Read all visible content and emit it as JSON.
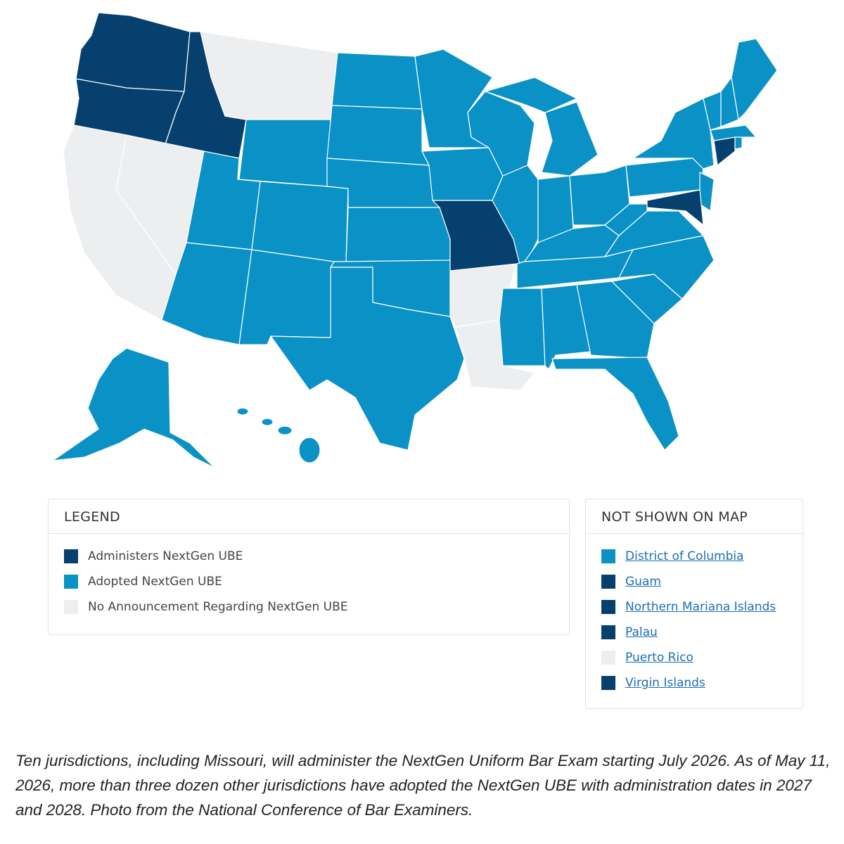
{
  "legend": {
    "title": "LEGEND",
    "items": [
      {
        "label": "Administers NextGen UBE",
        "color": "#06406f"
      },
      {
        "label": "Adopted NextGen UBE",
        "color": "#0a91c6"
      },
      {
        "label": "No Announcement Regarding NextGen UBE",
        "color": "#eceef0"
      }
    ]
  },
  "not_shown": {
    "title": "NOT SHOWN ON MAP",
    "items": [
      {
        "label": "District of Columbia",
        "color": "#0a91c6"
      },
      {
        "label": "Guam",
        "color": "#06406f"
      },
      {
        "label": "Northern Mariana Islands",
        "color": "#06406f"
      },
      {
        "label": "Palau",
        "color": "#06406f"
      },
      {
        "label": "Puerto Rico",
        "color": "#eceef0"
      },
      {
        "label": "Virgin Islands",
        "color": "#06406f"
      }
    ]
  },
  "caption": "Ten jurisdictions, including Missouri, will administer the NextGen Uniform Bar Exam starting July 2026. As of May 11, 2026, more than three dozen other jurisdictions have adopted the NextGen UBE with administration dates in 2027 and 2028. Photo from the National Conference of Bar Examiners."
}
